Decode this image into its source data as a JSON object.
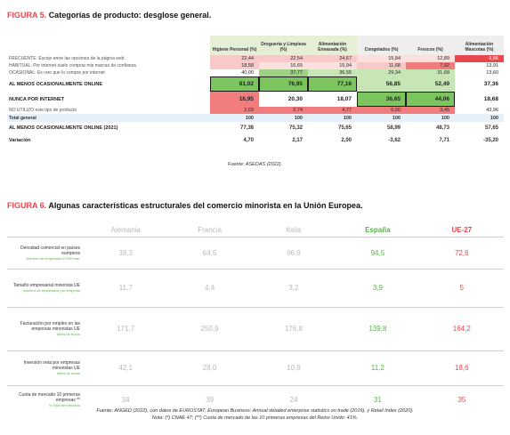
{
  "fig5": {
    "number": "FIGURA 5.",
    "title": "Categorías de producto: desglose general.",
    "headers": [
      "Higiene Personal (%)",
      "Droguería y Limpieza (%)",
      "Alimentación Envasada (%)",
      "Congelados (%)",
      "Frescos (%)",
      "Alimentación Mascotas (%)"
    ],
    "rows": [
      {
        "label": "FRECUENTE: Escojo entre las opciones de la página web",
        "values": [
          "22,44",
          "22,54",
          "24,67",
          "15,84",
          "12,89",
          "9,86"
        ]
      },
      {
        "label": "HABITUAL: Por internet suelo comprar mis marcas de confianza",
        "values": [
          "18,58",
          "16,65",
          "15,94",
          "11,68",
          "7,92",
          "13,91"
        ]
      },
      {
        "label": "OCASIONAL: Es raro que lo compre por internet",
        "values": [
          "40,00",
          "37,77",
          "36,55",
          "29,34",
          "31,68",
          "13,60"
        ]
      },
      {
        "label": "AL MENOS OCASIONALMENTE ONLINE",
        "values": [
          "81,02",
          "76,95",
          "77,16",
          "56,85",
          "52,49",
          "37,36"
        ]
      },
      {
        "label": "NUNCA POR INTERNET",
        "values": [
          "16,95",
          "20,30",
          "18,07",
          "36,65",
          "44,06",
          "18,68"
        ]
      },
      {
        "label": "NO UTILIZO este tipo de producto",
        "values": [
          "2,03",
          "2,74",
          "4,77",
          "6,50",
          "3,45",
          "43,96"
        ]
      },
      {
        "label": "Total general",
        "values": [
          "100",
          "100",
          "100",
          "100",
          "100",
          "100"
        ]
      },
      {
        "label": "AL MENOS OCASIONALMENTE ONLINE (2021)",
        "values": [
          "77,38",
          "75,32",
          "75,65",
          "58,99",
          "48,73",
          "57,65"
        ]
      },
      {
        "label": "Variación",
        "values": [
          "4,70",
          "2,17",
          "2,00",
          "-3,62",
          "7,71",
          "-35,20"
        ]
      }
    ],
    "source": "Fuente: ASEDAS (2022).",
    "colors": {
      "red_strong": "#f07c7e",
      "red_light": "#f8c9c9",
      "red_dark": "#e8474c",
      "green_strong": "#7cc45e",
      "green_light": "#c8e5b6",
      "green_mid": "#9fd184",
      "total_bg": "#e6f0f8"
    }
  },
  "fig6": {
    "number": "FIGURA 6.",
    "title": "Algunas características estructurales del comercio minorista en la Unión Europea.",
    "headers": [
      "Alemania",
      "Francia",
      "Italia",
      "España",
      "UE-27"
    ],
    "rows": [
      {
        "label": "Densidad comercial en países europeos",
        "sub": "Número de empresas/10.000 hab.",
        "values": [
          "38,3",
          "64,5",
          "96,9",
          "94,5",
          "72,6"
        ]
      },
      {
        "label": "Tamaño empresarial minorista UE",
        "sub": "Número de empleados por empresa",
        "values": [
          "11,7",
          "4,4",
          "3,2",
          "3,9",
          "5"
        ]
      },
      {
        "label": "Facturación por empleo en las empresas minoristas UE",
        "sub": "Miles de euros",
        "values": [
          "171,7",
          "250,9",
          "176,8",
          "139,8",
          "164,2"
        ]
      },
      {
        "label": "Inversión neta por empresas minoristas UE",
        "sub": "Miles de euros",
        "values": [
          "42,1",
          "28,0",
          "10,8",
          "11,2",
          "18,6"
        ]
      },
      {
        "label": "Cuota de mercado 10 primeras empresas **",
        "sub": "% Total de mercado",
        "values": [
          "34",
          "39",
          "24",
          "31",
          "35"
        ]
      }
    ],
    "source_line1": "Fuente: ANGED (2022), con datos de EUROSTAT, European Business: Annual detailed enterprise statistics on trade (2019), y Retail Index (2020).",
    "source_line2": "Nota: (*) CNAE 47; (**) Cuota de mercado de las 10 primeras empresas del Reino Unido: 41%.",
    "colors": {
      "muted": "#b9b9b9",
      "spain": "#5cb24a",
      "eu": "#e8474c"
    }
  }
}
